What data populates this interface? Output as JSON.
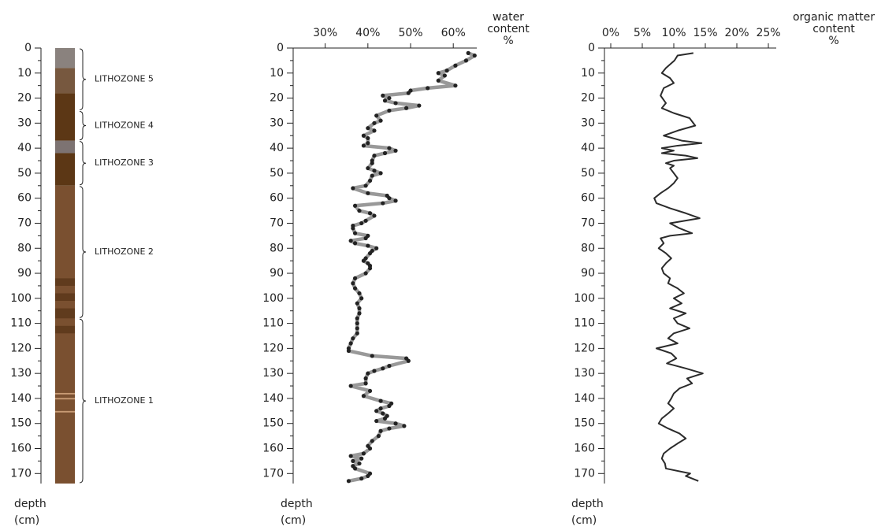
{
  "chart_data": [
    {
      "type": "column",
      "ylabel": [
        "depth",
        "(cm)"
      ],
      "ylim": [
        0,
        174
      ],
      "yticks": [
        0,
        10,
        20,
        30,
        40,
        50,
        60,
        70,
        80,
        90,
        100,
        110,
        120,
        130,
        140,
        150,
        160,
        170
      ],
      "yminor": [
        5,
        15,
        25,
        35,
        45,
        55,
        65,
        75,
        85,
        95,
        105,
        115,
        125,
        135,
        145,
        155,
        165
      ],
      "layers": [
        {
          "top": 0,
          "bottom": 8,
          "color": "#8a827e"
        },
        {
          "top": 8,
          "bottom": 18,
          "color": "#77583f"
        },
        {
          "top": 18,
          "bottom": 37,
          "color": "#5c3715"
        },
        {
          "top": 37,
          "bottom": 42,
          "color": "#7d7372"
        },
        {
          "top": 42,
          "bottom": 55,
          "color": "#5c3715"
        },
        {
          "top": 55,
          "bottom": 174,
          "color": "#7a5030"
        },
        {
          "top": 92,
          "bottom": 95,
          "color": "#603b1d"
        },
        {
          "top": 98,
          "bottom": 101,
          "color": "#603b1d"
        },
        {
          "top": 104,
          "bottom": 108,
          "color": "#603b1d"
        },
        {
          "top": 111,
          "bottom": 114,
          "color": "#603b1d"
        },
        {
          "top": 137.8,
          "bottom": 138.4,
          "color": "#c79a74"
        },
        {
          "top": 139.8,
          "bottom": 140.4,
          "color": "#c79a74"
        },
        {
          "top": 145,
          "bottom": 145.6,
          "color": "#c79a74"
        }
      ],
      "zones": [
        {
          "label": "LITHOZONE 5",
          "top": 0,
          "bottom": 25
        },
        {
          "label": "LITHOZONE 4",
          "top": 25,
          "bottom": 37
        },
        {
          "label": "LITHOZONE 3",
          "top": 37,
          "bottom": 55
        },
        {
          "label": "LITHOZONE 2",
          "top": 55,
          "bottom": 108
        },
        {
          "label": "LITHOZONE 1",
          "top": 108,
          "bottom": 174
        }
      ]
    },
    {
      "type": "profile",
      "xlabel": [
        "water",
        "content",
        "%"
      ],
      "ylabel": [
        "depth",
        "(cm)"
      ],
      "xlim": [
        22.5,
        65.5
      ],
      "xticks": [
        {
          "value": 30,
          "label": "30%"
        },
        {
          "value": 40,
          "label": "40%"
        },
        {
          "value": 50,
          "label": "50%"
        },
        {
          "value": 60,
          "label": "60%"
        }
      ],
      "ylim": [
        0,
        174
      ],
      "yticks": [
        0,
        10,
        20,
        30,
        40,
        50,
        60,
        70,
        80,
        90,
        100,
        110,
        120,
        130,
        140,
        150,
        160,
        170
      ],
      "yminor": [
        5,
        15,
        25,
        35,
        45,
        55,
        65,
        75,
        85,
        95,
        105,
        115,
        125,
        135,
        145,
        155,
        165
      ],
      "markers": true,
      "series": [
        {
          "color": "#999999",
          "marker_color": "#222222",
          "depth": [
            2,
            3,
            5,
            7,
            9,
            10,
            11,
            13,
            15,
            16,
            17,
            18,
            19,
            20,
            21,
            22,
            23,
            24,
            25,
            27,
            29,
            30,
            32,
            33,
            35,
            36,
            38,
            39,
            40,
            41,
            42,
            43,
            45,
            46,
            48,
            49,
            50,
            51,
            53,
            55,
            56,
            58,
            59,
            60,
            61,
            62,
            63,
            65,
            66,
            67,
            69,
            70,
            71,
            72,
            74,
            75,
            76,
            77,
            78,
            79,
            80,
            81,
            82,
            84,
            85,
            86,
            87,
            88,
            90,
            92,
            94,
            96,
            98,
            100,
            102,
            104,
            106,
            108,
            110,
            112,
            114,
            116,
            118,
            120,
            121,
            123,
            124,
            125,
            127,
            128,
            129,
            130,
            132,
            134,
            135,
            137,
            139,
            141,
            142,
            143,
            144,
            145,
            146,
            147,
            148,
            149,
            150,
            151,
            152,
            153,
            155,
            157,
            159,
            160,
            162,
            163,
            164,
            165,
            166,
            167,
            168,
            170,
            171,
            172,
            173
          ],
          "values": [
            63.5,
            65,
            63,
            60.5,
            58.5,
            56.5,
            58,
            56.5,
            60.5,
            54,
            50,
            49.5,
            43.5,
            45,
            44,
            46.5,
            52,
            49,
            45,
            42,
            43,
            41.5,
            40,
            41.5,
            39,
            40,
            40,
            39,
            45,
            46.5,
            44,
            41.5,
            41,
            41,
            40,
            41.5,
            43,
            41,
            40.5,
            39.5,
            36.5,
            40,
            44.5,
            45,
            46.5,
            43.5,
            37,
            38,
            40.5,
            41.5,
            39.5,
            38.5,
            36.5,
            36.5,
            37,
            40,
            39.5,
            36,
            37,
            40,
            42,
            41,
            40.5,
            39.5,
            39,
            40,
            40.5,
            40.5,
            39.5,
            37,
            36.5,
            37,
            38,
            38.5,
            37.5,
            38,
            38,
            37.5,
            37.5,
            37.5,
            37.5,
            36.5,
            36,
            35.5,
            35.5,
            41,
            49,
            49.5,
            45,
            43.5,
            41.5,
            40,
            39.5,
            39.5,
            36,
            40.5,
            39,
            43,
            45.5,
            45,
            43,
            42,
            43.5,
            44.5,
            44,
            42,
            46.5,
            48.5,
            45,
            43,
            42.5,
            41,
            40,
            40.5,
            39,
            36,
            38.5,
            36.5,
            38,
            36.5,
            37,
            40.5,
            40,
            38.5,
            35.5
          ]
        }
      ]
    },
    {
      "type": "profile",
      "xlabel": [
        "organic matter",
        "content",
        "%"
      ],
      "ylabel": [
        "depth",
        "(cm)"
      ],
      "xlim": [
        -1,
        26.25
      ],
      "xticks": [
        {
          "value": 0,
          "label": "0%"
        },
        {
          "value": 5,
          "label": "5%"
        },
        {
          "value": 10,
          "label": "10%"
        },
        {
          "value": 15,
          "label": "15%"
        },
        {
          "value": 20,
          "label": "20%"
        },
        {
          "value": 25,
          "label": "25%"
        }
      ],
      "ylim": [
        0,
        174
      ],
      "yticks": [
        0,
        10,
        20,
        30,
        40,
        50,
        60,
        70,
        80,
        90,
        100,
        110,
        120,
        130,
        140,
        150,
        160,
        170
      ],
      "yminor": [
        5,
        15,
        25,
        35,
        45,
        55,
        65,
        75,
        85,
        95,
        105,
        115,
        125,
        135,
        145,
        155,
        165
      ],
      "markers": false,
      "series": [
        {
          "color": "#2b2b2b",
          "depth": [
            2,
            3,
            5,
            8,
            10,
            12,
            14,
            16,
            19,
            22,
            24,
            26,
            28,
            31,
            33,
            35,
            37,
            38,
            39,
            40,
            41,
            42,
            43,
            44,
            45,
            46,
            47,
            48,
            50,
            52,
            54,
            56,
            58,
            60,
            62,
            64,
            66,
            68,
            70,
            72,
            74,
            75,
            76,
            78,
            80,
            82,
            84,
            86,
            88,
            90,
            92,
            94,
            96,
            98,
            100,
            102,
            104,
            106,
            108,
            110,
            112,
            114,
            116,
            118,
            120,
            122,
            124,
            126,
            128,
            130,
            132,
            134,
            136,
            138,
            140,
            142,
            144,
            146,
            148,
            150,
            152,
            154,
            156,
            158,
            160,
            162,
            164,
            166,
            168,
            170,
            171,
            173
          ],
          "values": [
            13.1,
            10.6,
            10.1,
            8.75,
            8.1,
            9.4,
            10,
            8.4,
            7.9,
            8.75,
            8.1,
            10,
            12.5,
            13.4,
            10.6,
            8.4,
            11.25,
            14.4,
            10.6,
            8.1,
            10,
            8.1,
            11.9,
            13.75,
            10,
            8.75,
            10,
            9.4,
            10,
            10.6,
            10,
            9.1,
            7.9,
            6.9,
            7.25,
            9.4,
            11.9,
            14.1,
            9.4,
            10.9,
            12.9,
            9.4,
            7.9,
            8.4,
            7.6,
            8.75,
            9.6,
            8.75,
            8.1,
            8.4,
            9.4,
            9.1,
            10.6,
            11.6,
            10,
            11.25,
            9.4,
            11.9,
            10,
            10.6,
            12.5,
            10,
            9.1,
            10.6,
            7.25,
            9.6,
            10.4,
            8.9,
            11.9,
            14.6,
            12.1,
            12.9,
            10.9,
            10,
            9.6,
            9.1,
            10,
            9.1,
            8.1,
            7.6,
            9.1,
            10.9,
            11.9,
            10.6,
            9.4,
            8.4,
            8.1,
            8.6,
            8.75,
            12.6,
            11.9,
            13.9
          ]
        }
      ]
    }
  ]
}
